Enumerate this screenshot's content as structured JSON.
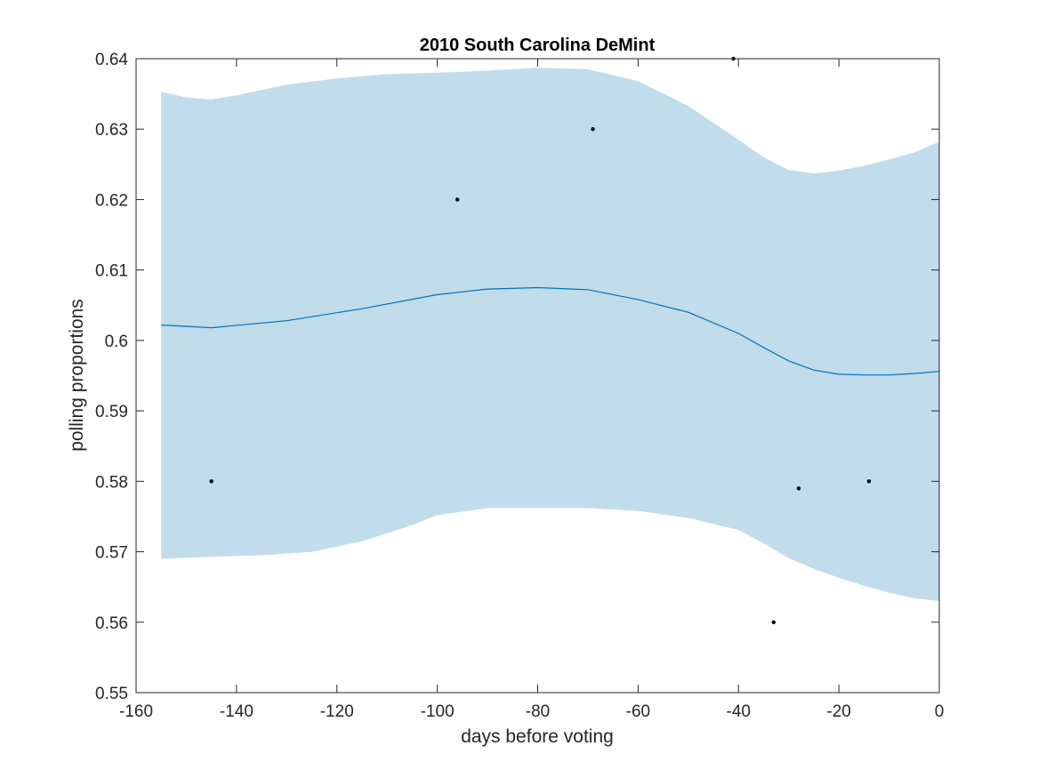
{
  "chart_data": {
    "type": "line",
    "title": "2010 South Carolina DeMint",
    "xlabel": "days before voting",
    "ylabel": "polling proportions",
    "xlim": [
      -160,
      0
    ],
    "ylim": [
      0.55,
      0.64
    ],
    "xticks": [
      -160,
      -140,
      -120,
      -100,
      -80,
      -60,
      -40,
      -20,
      0
    ],
    "xtick_labels": [
      "-160",
      "-140",
      "-120",
      "-100",
      "-80",
      "-60",
      "-40",
      "-20",
      "0"
    ],
    "yticks": [
      0.55,
      0.56,
      0.57,
      0.58,
      0.59,
      0.6,
      0.61,
      0.62,
      0.63,
      0.64
    ],
    "ytick_labels": [
      "0.55",
      "0.56",
      "0.57",
      "0.58",
      "0.59",
      "0.6",
      "0.61",
      "0.62",
      "0.63",
      "0.64"
    ],
    "grid": false,
    "colors": {
      "band": "#c1dcea",
      "line": "#0072bd",
      "points": "#000000",
      "axes": "#262626"
    },
    "mean_line": {
      "x": [
        -155,
        -145,
        -130,
        -115,
        -100,
        -90,
        -80,
        -70,
        -60,
        -50,
        -40,
        -35,
        -30,
        -25,
        -20,
        -15,
        -10,
        -5,
        0
      ],
      "y": [
        0.6022,
        0.6018,
        0.6028,
        0.6045,
        0.6065,
        0.6073,
        0.6075,
        0.6072,
        0.6058,
        0.604,
        0.601,
        0.599,
        0.5971,
        0.5958,
        0.5952,
        0.5951,
        0.5951,
        0.5953,
        0.5956
      ]
    },
    "band_upper": {
      "x": [
        -155,
        -150,
        -145,
        -140,
        -130,
        -120,
        -110,
        -100,
        -90,
        -80,
        -70,
        -60,
        -50,
        -40,
        -35,
        -30,
        -25,
        -20,
        -15,
        -10,
        -5,
        0
      ],
      "y": [
        0.6353,
        0.6345,
        0.6342,
        0.6348,
        0.6363,
        0.6372,
        0.6378,
        0.638,
        0.6383,
        0.6387,
        0.6385,
        0.6368,
        0.6333,
        0.6285,
        0.626,
        0.6242,
        0.6237,
        0.6241,
        0.6248,
        0.6257,
        0.6267,
        0.6282
      ]
    },
    "band_lower": {
      "x": [
        -155,
        -145,
        -135,
        -125,
        -115,
        -105,
        -100,
        -90,
        -80,
        -70,
        -60,
        -50,
        -40,
        -35,
        -30,
        -25,
        -20,
        -15,
        -10,
        -5,
        0
      ],
      "y": [
        0.569,
        0.5693,
        0.5695,
        0.57,
        0.5715,
        0.5738,
        0.5752,
        0.5762,
        0.5762,
        0.5762,
        0.5758,
        0.5748,
        0.5731,
        0.5712,
        0.5691,
        0.5676,
        0.5663,
        0.5652,
        0.5642,
        0.5634,
        0.563
      ]
    },
    "points": [
      {
        "x": -145,
        "y": 0.58
      },
      {
        "x": -96,
        "y": 0.62
      },
      {
        "x": -69,
        "y": 0.63
      },
      {
        "x": -41,
        "y": 0.64
      },
      {
        "x": -33,
        "y": 0.56
      },
      {
        "x": -28,
        "y": 0.579
      },
      {
        "x": -14,
        "y": 0.58
      }
    ]
  }
}
